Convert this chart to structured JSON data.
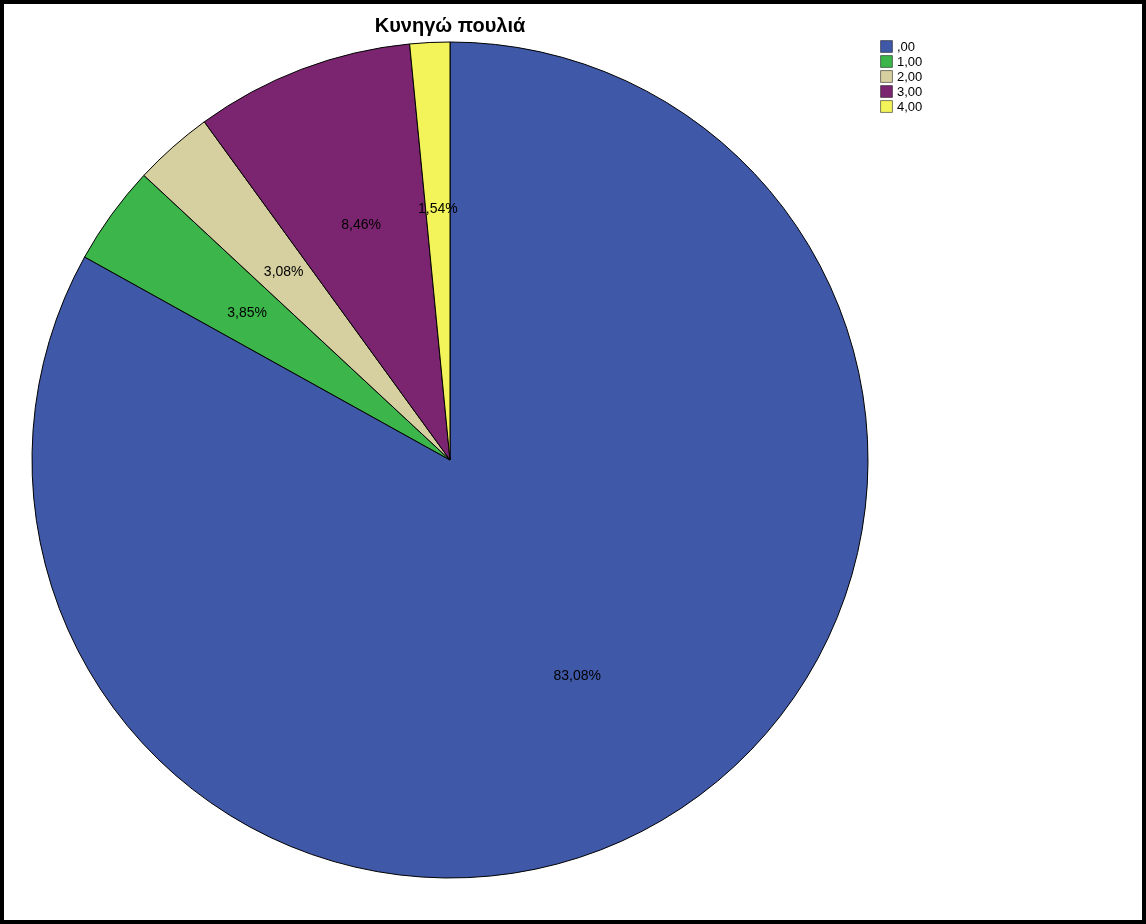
{
  "chart_data": {
    "type": "pie",
    "title": "Κυνηγώ πουλιά",
    "categories": [
      ",00",
      "1,00",
      "2,00",
      "3,00",
      "4,00"
    ],
    "values": [
      83.08,
      3.85,
      3.08,
      8.46,
      1.54
    ],
    "value_labels": [
      "83,08%",
      "3,85%",
      "3,08%",
      "8,46%",
      "1,54%"
    ],
    "colors": [
      "#3f58a8",
      "#3cb54a",
      "#d6cf9f",
      "#7b2570",
      "#f3f35a"
    ],
    "legend": "top right"
  }
}
